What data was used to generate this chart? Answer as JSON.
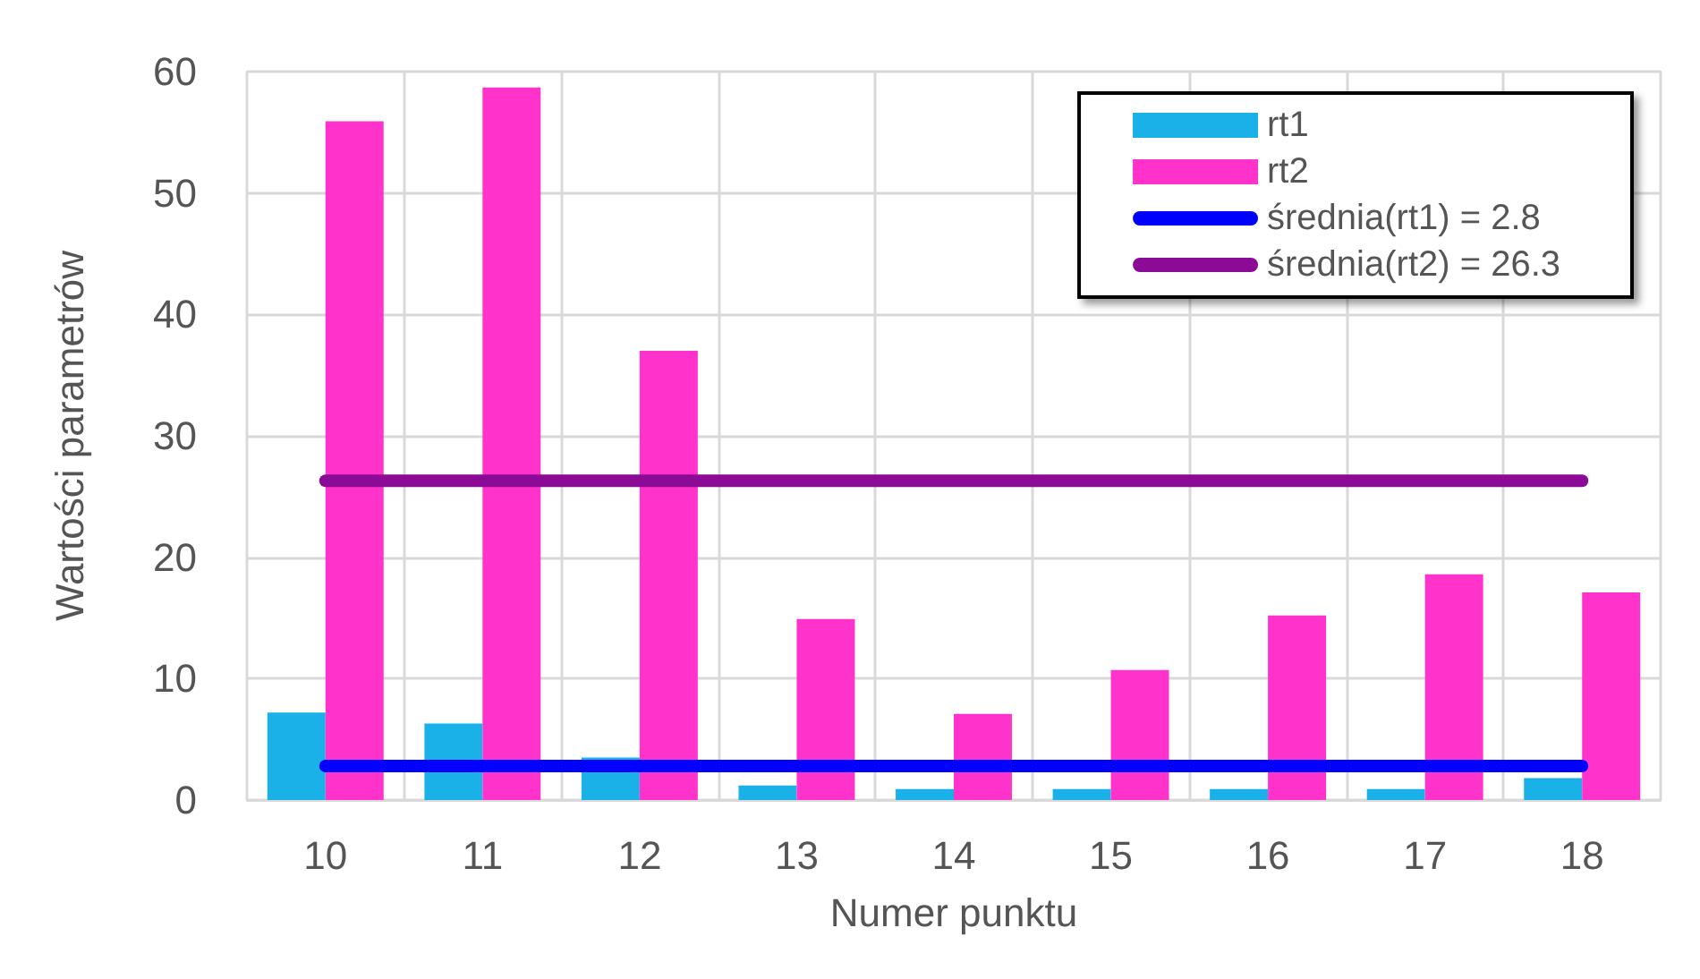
{
  "chart_data": {
    "type": "bar",
    "xlabel": "Numer punktu",
    "ylabel": "Wartości parametrów",
    "categories": [
      "10",
      "11",
      "12",
      "13",
      "14",
      "15",
      "16",
      "17",
      "18"
    ],
    "series": [
      {
        "name": "rt1",
        "color": "#1ab0e8",
        "values": [
          7.2,
          6.3,
          3.5,
          1.2,
          0.9,
          0.9,
          0.9,
          0.9,
          1.8
        ]
      },
      {
        "name": "rt2",
        "color": "#ff33cc",
        "values": [
          55.9,
          58.7,
          37.0,
          14.9,
          7.1,
          10.7,
          15.2,
          18.6,
          17.1
        ]
      },
      {
        "name": "średnia(rt1) = 2.8",
        "type": "line",
        "color": "#0000ff",
        "values": [
          2.8,
          2.8,
          2.8,
          2.8,
          2.8,
          2.8,
          2.8,
          2.8,
          2.8
        ]
      },
      {
        "name": "średnia(rt2) = 26.3",
        "type": "line",
        "color": "#8b0a96",
        "values": [
          26.3,
          26.3,
          26.3,
          26.3,
          26.3,
          26.3,
          26.3,
          26.3,
          26.3
        ]
      }
    ],
    "ylim": [
      0,
      60
    ],
    "yticks": [
      0,
      10,
      20,
      30,
      40,
      50,
      60
    ],
    "grid": true,
    "legend": "top right",
    "line_style": "solid"
  }
}
